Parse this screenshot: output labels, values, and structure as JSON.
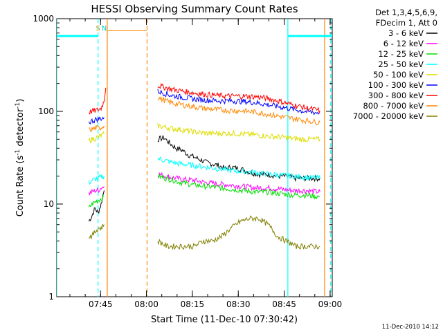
{
  "chart_data": {
    "type": "line",
    "title": "HESSI Observing Summary Count Rates",
    "xlabel": "Start Time (11-Dec-10 07:30:42)",
    "ylabel_main": "Count Rate (s",
    "ylabel_sup1": "-1",
    "ylabel_mid": " detector",
    "ylabel_sup2": "-1",
    "ylabel_end": ")",
    "yscale": "log",
    "ylim": [
      1,
      1000
    ],
    "xlim_minutes": [
      0,
      90
    ],
    "y_ticks": [
      {
        "value": 1,
        "label": "1"
      },
      {
        "value": 10,
        "label": "10"
      },
      {
        "value": 100,
        "label": "100"
      },
      {
        "value": 1000,
        "label": "1000"
      }
    ],
    "x_ticks": [
      {
        "minutes": 14.3,
        "label": "07:45"
      },
      {
        "minutes": 29.3,
        "label": "08:00"
      },
      {
        "minutes": 44.3,
        "label": "08:15"
      },
      {
        "minutes": 59.3,
        "label": "08:30"
      },
      {
        "minutes": 74.3,
        "label": "08:45"
      },
      {
        "minutes": 89.3,
        "label": "09:00"
      }
    ],
    "legend_header": [
      "Det 1,3,4,5,6,9,",
      "FDecim 1, Att 0"
    ],
    "legend_position": "right",
    "series": [
      {
        "name": "3 - 6 keV",
        "color": "#000000",
        "segments": [
          {
            "x": [
              10.5,
              11.5,
              12.5,
              13.5,
              14.5,
              15.5
            ],
            "y": [
              6.5,
              7.5,
              9,
              8,
              10,
              14
            ]
          },
          {
            "x": [
              33,
              35,
              37,
              39,
              41,
              43,
              45,
              47,
              49,
              51,
              53,
              55,
              57,
              60,
              63,
              66,
              69,
              72,
              75,
              78,
              80,
              82,
              84,
              86
            ],
            "y": [
              50,
              52,
              45,
              40,
              38,
              34,
              32,
              30,
              28,
              27,
              26,
              24,
              25,
              24,
              22,
              21,
              21,
              20,
              20,
              19,
              19,
              19,
              19,
              19
            ]
          }
        ]
      },
      {
        "name": "6 - 12 keV",
        "color": "#ff00ff",
        "segments": [
          {
            "x": [
              10.5,
              11.5,
              12.5,
              13.5,
              14.5,
              15.5
            ],
            "y": [
              13,
              13.5,
              14,
              14,
              15,
              15.5
            ]
          },
          {
            "x": [
              33,
              37,
              41,
              45,
              49,
              53,
              57,
              61,
              65,
              69,
              73,
              77,
              81,
              86
            ],
            "y": [
              21,
              19.5,
              18.5,
              18,
              17,
              16.5,
              16,
              15.5,
              15,
              15,
              14.5,
              14,
              14,
              13.5
            ]
          }
        ]
      },
      {
        "name": "12 - 25 keV",
        "color": "#00dd00",
        "segments": [
          {
            "x": [
              10.5,
              11.5,
              12.5,
              13.5,
              14.5,
              15.5
            ],
            "y": [
              9,
              10,
              10.5,
              11,
              11.5,
              12
            ]
          },
          {
            "x": [
              33,
              37,
              41,
              45,
              49,
              53,
              57,
              61,
              65,
              69,
              73,
              77,
              81,
              86
            ],
            "y": [
              20,
              18.5,
              17,
              16,
              15.5,
              15,
              14.5,
              14,
              13.5,
              13.5,
              13,
              12.5,
              12.5,
              12
            ]
          }
        ]
      },
      {
        "name": "25 - 50 keV",
        "color": "#00ffff",
        "segments": [
          {
            "x": [
              10.5,
              11.5,
              12.5,
              13.5,
              14.5,
              15.5
            ],
            "y": [
              17,
              18,
              18.5,
              19,
              19.5,
              20
            ]
          },
          {
            "x": [
              33,
              37,
              41,
              45,
              49,
              53,
              57,
              61,
              65,
              69,
              73,
              77,
              81,
              86
            ],
            "y": [
              31,
              28.5,
              27,
              26,
              25,
              24,
              23,
              22.5,
              22,
              21,
              20.5,
              20,
              19.5,
              19
            ]
          }
        ]
      },
      {
        "name": "50 - 100 keV",
        "color": "#dddd00",
        "segments": [
          {
            "x": [
              10.5,
              11.5,
              12.5,
              13.5,
              14.5,
              15.5
            ],
            "y": [
              48,
              50,
              51,
              53,
              55,
              57
            ]
          },
          {
            "x": [
              33,
              37,
              41,
              45,
              49,
              53,
              57,
              61,
              65,
              69,
              73,
              77,
              81,
              86
            ],
            "y": [
              70,
              66,
              63,
              60,
              58,
              58,
              58,
              57,
              56,
              54,
              53,
              51,
              50,
              50
            ]
          }
        ]
      },
      {
        "name": "100 - 300 keV",
        "color": "#0000ff",
        "segments": [
          {
            "x": [
              10.5,
              11.5,
              12.5,
              13.5,
              14.5,
              15.5
            ],
            "y": [
              76,
              79,
              81,
              83,
              84,
              86
            ]
          },
          {
            "x": [
              33,
              37,
              41,
              45,
              49,
              53,
              57,
              61,
              65,
              69,
              73,
              77,
              81,
              86
            ],
            "y": [
              165,
              150,
              142,
              136,
              132,
              130,
              130,
              128,
              124,
              118,
              112,
              106,
              100,
              96
            ]
          }
        ]
      },
      {
        "name": "300 - 800 keV",
        "color": "#ff0000",
        "segments": [
          {
            "x": [
              10.5,
              11.5,
              12.5,
              13.5,
              14.5,
              15.5,
              16
            ],
            "y": [
              98,
              100,
              102,
              104,
              108,
              130,
              180
            ]
          },
          {
            "x": [
              33,
              37,
              41,
              45,
              49,
              53,
              57,
              61,
              65,
              69,
              73,
              77,
              81,
              86
            ],
            "y": [
              190,
              175,
              165,
              158,
              152,
              148,
              146,
              146,
              144,
              138,
              128,
              118,
              110,
              102
            ]
          }
        ]
      },
      {
        "name": "800 - 7000 keV",
        "color": "#ff8800",
        "segments": [
          {
            "x": [
              10.5,
              11.5,
              12.5,
              13.5,
              14.5,
              15.5
            ],
            "y": [
              63,
              64,
              66,
              66,
              67,
              70
            ]
          },
          {
            "x": [
              16.5,
              29.5
            ],
            "y": [
              740,
              740
            ]
          },
          {
            "x": [
              33,
              37,
              41,
              45,
              49,
              53,
              57,
              61,
              65,
              69,
              73,
              77,
              81,
              86
            ],
            "y": [
              140,
              125,
              118,
              112,
              107,
              104,
              102,
              101,
              98,
              93,
              88,
              84,
              80,
              76
            ]
          }
        ]
      },
      {
        "name": "7000 - 20000 keV",
        "color": "#808000",
        "segments": [
          {
            "x": [
              10.5,
              11.5,
              12.5,
              13.5,
              14.5,
              15.5
            ],
            "y": [
              4.5,
              4.5,
              5,
              5.5,
              5.5,
              6
            ]
          },
          {
            "x": [
              33,
              36,
              39,
              42,
              45,
              48,
              51,
              54,
              57,
              60,
              63,
              66,
              69,
              72,
              75,
              78,
              82,
              86
            ],
            "y": [
              4,
              3.5,
              3.5,
              3.5,
              3.5,
              4,
              4,
              4.5,
              5.5,
              6.5,
              7,
              7,
              6,
              4.5,
              4,
              3.5,
              3.5,
              3.5
            ]
          }
        ]
      }
    ],
    "flags": [
      {
        "x": [
          0,
          13.5
        ],
        "y": [
          650,
          650
        ],
        "color": "#00ffff"
      },
      {
        "x": [
          75.5,
          90
        ],
        "y": [
          650,
          650
        ],
        "color": "#00ffff"
      }
    ],
    "vlines": [
      {
        "x": 0,
        "color": "#00ffff",
        "dash": false
      },
      {
        "x": 13.5,
        "color": "#00ffff",
        "dash": true
      },
      {
        "x": 16.5,
        "color": "#ff8800",
        "dash": false
      },
      {
        "x": 29.5,
        "color": "#ff8800",
        "dash": true
      },
      {
        "x": 75.5,
        "color": "#00ffff",
        "dash": false
      },
      {
        "x": 87.5,
        "color": "#ff8800",
        "dash": false
      },
      {
        "x": 89.5,
        "color": "#00ffff",
        "dash": true
      }
    ],
    "annotations": [
      {
        "text": "S",
        "x": 13.5,
        "color": "#dd9900"
      },
      {
        "text": "N",
        "x": 15.5,
        "color": "#00cccc"
      }
    ],
    "timestamp": "11-Dec-2010 14:12"
  }
}
